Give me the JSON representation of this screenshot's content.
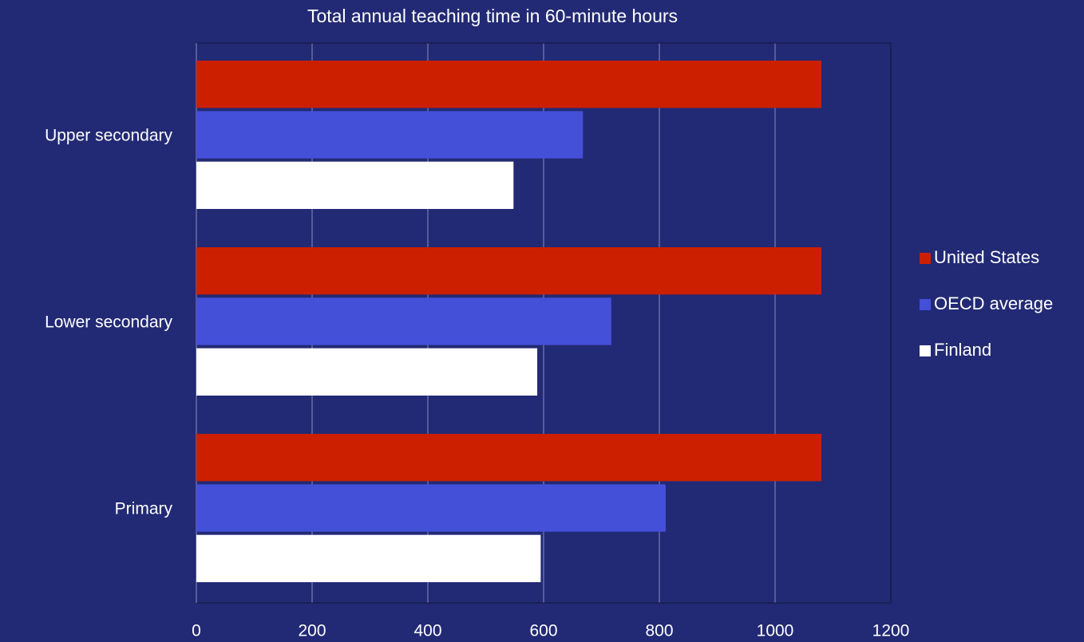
{
  "chart_data": {
    "type": "barh",
    "title": "Total annual teaching time in 60-minute hours",
    "categories": [
      "Primary",
      "Lower secondary",
      "Upper secondary"
    ],
    "series": [
      {
        "name": "United States",
        "color": "#cc1f00",
        "values": [
          1080,
          1080,
          1080
        ]
      },
      {
        "name": "OECD average",
        "color": "#4450d8",
        "values": [
          811,
          717,
          668
        ]
      },
      {
        "name": "Finland",
        "color": "#ffffff",
        "values": [
          595,
          589,
          548
        ]
      }
    ],
    "xlim": [
      0,
      1200
    ],
    "xticks": [
      0,
      200,
      400,
      600,
      800,
      1000,
      1200
    ],
    "grid": true,
    "legend": "right"
  }
}
